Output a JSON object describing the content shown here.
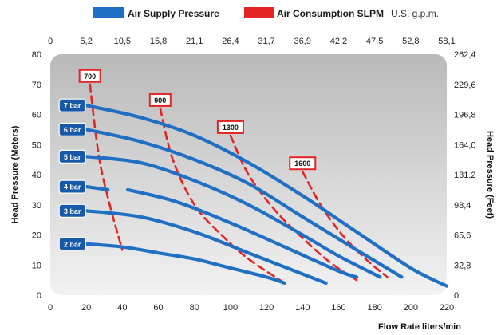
{
  "legend": {
    "air_supply": "Air Supply Pressure",
    "air_consumption": "Air Consumption SLPM",
    "units": "U.S. g.p.m."
  },
  "colors": {
    "air_supply": "#1f6fc4",
    "air_consumption": "#e42424",
    "plot_bg_top": "#b9b9b9",
    "plot_bg_bottom": "#f2f2f2"
  },
  "chart_data": {
    "type": "line",
    "xlabel": "Flow Rate liters/min",
    "ylabel": "Head Pressure (Meters)",
    "y2label": "Head Pressure (Feet)",
    "xlim": [
      0,
      220
    ],
    "ylim": [
      0,
      80
    ],
    "x_ticks": [
      "0",
      "20",
      "40",
      "60",
      "80",
      "100",
      "120",
      "140",
      "160",
      "180",
      "200",
      "220"
    ],
    "y_ticks": [
      "0",
      "10",
      "20",
      "30",
      "40",
      "50",
      "60",
      "70",
      "80"
    ],
    "top_ticks": [
      "0",
      "5,2",
      "10,5",
      "15,8",
      "21,1",
      "26,4",
      "31,7",
      "36,9",
      "42,2",
      "47,5",
      "52,8",
      "58,1"
    ],
    "right_ticks": [
      "0",
      "32,8",
      "65,6",
      "98,4",
      "131,2",
      "164,0",
      "196,8",
      "229,6",
      "262,4"
    ],
    "series": [
      {
        "name": "7 bar",
        "x": [
          20,
          50,
          80,
          110,
          140,
          170,
          200,
          220
        ],
        "y": [
          63,
          59,
          53,
          44,
          33,
          21,
          9,
          3
        ]
      },
      {
        "name": "6 bar",
        "x": [
          20,
          50,
          80,
          110,
          140,
          170,
          195
        ],
        "y": [
          55,
          51,
          45,
          37,
          26,
          15,
          6
        ]
      },
      {
        "name": "5 bar",
        "x": [
          20,
          50,
          80,
          110,
          140,
          160,
          183
        ],
        "y": [
          46,
          44,
          38,
          30,
          20,
          13,
          6
        ]
      },
      {
        "name": "4 bar",
        "x": [
          20,
          32
        ],
        "y": [
          36,
          35
        ]
      },
      {
        "name": "4 bar",
        "x": [
          43,
          70,
          100,
          130,
          160,
          170
        ],
        "y": [
          35,
          31,
          24,
          16,
          8,
          6
        ]
      },
      {
        "name": "3 bar",
        "x": [
          20,
          50,
          80,
          110,
          140,
          153
        ],
        "y": [
          28,
          26,
          21,
          14,
          7,
          4
        ]
      },
      {
        "name": "2 bar",
        "x": [
          20,
          40,
          60,
          80,
          100,
          120,
          130
        ],
        "y": [
          17,
          16,
          14,
          12,
          9,
          6,
          4
        ]
      }
    ],
    "consumption_lines": [
      {
        "label": "700",
        "x": [
          22,
          27,
          33,
          40
        ],
        "y": [
          70,
          46,
          30,
          15
        ]
      },
      {
        "label": "900",
        "x": [
          61,
          68,
          80,
          95,
          110,
          130
        ],
        "y": [
          62,
          45,
          30,
          20,
          12,
          4
        ]
      },
      {
        "label": "1300",
        "x": [
          100,
          110,
          125,
          140,
          155,
          170
        ],
        "y": [
          53,
          40,
          28,
          19,
          11,
          5
        ]
      },
      {
        "label": "1600",
        "x": [
          140,
          150,
          162,
          175,
          187
        ],
        "y": [
          41,
          30,
          20,
          12,
          6
        ]
      }
    ],
    "bar_labels": [
      "7 bar",
      "6 bar",
      "5 bar",
      "4 bar",
      "3 bar",
      "2 bar"
    ],
    "slpm_labels": [
      "700",
      "900",
      "1300",
      "1600"
    ]
  }
}
